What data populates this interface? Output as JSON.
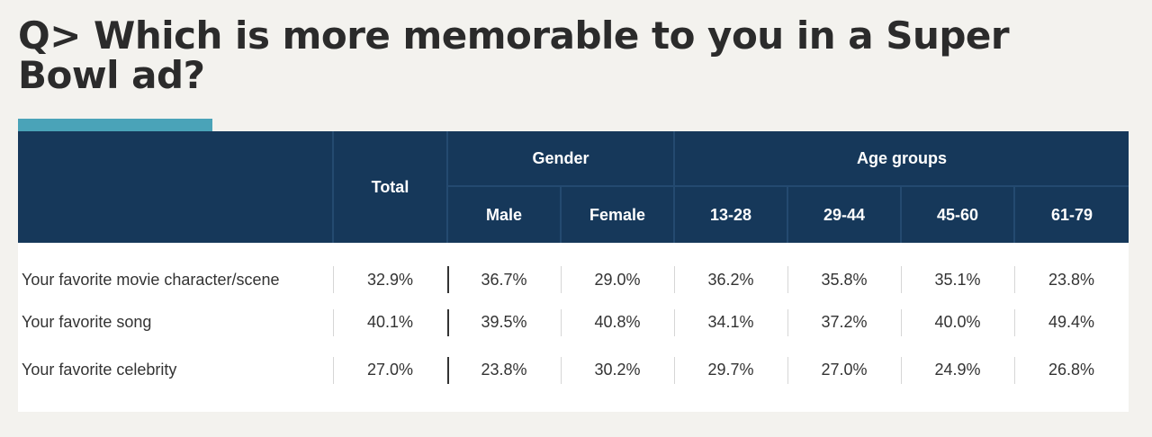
{
  "title": "Q> Which is more memorable to you in a Super Bowl ad?",
  "colors": {
    "header_bg": "#16385a",
    "accent": "#4aa3b8",
    "background": "#f3f2ee"
  },
  "chart_data": {
    "type": "table",
    "header": {
      "total": "Total",
      "groups": [
        {
          "label": "Gender",
          "columns": [
            "Male",
            "Female"
          ]
        },
        {
          "label": "Age groups",
          "columns": [
            "13-28",
            "29-44",
            "45-60",
            "61-79"
          ]
        }
      ]
    },
    "rows": [
      {
        "label": "Your favorite movie character/scene",
        "values": [
          "32.9%",
          "36.7%",
          "29.0%",
          "36.2%",
          "35.8%",
          "35.1%",
          "23.8%"
        ]
      },
      {
        "label": "Your favorite song",
        "values": [
          "40.1%",
          "39.5%",
          "40.8%",
          "34.1%",
          "37.2%",
          "40.0%",
          "49.4%"
        ]
      },
      {
        "label": "Your favorite celebrity",
        "values": [
          "27.0%",
          "23.8%",
          "30.2%",
          "29.7%",
          "27.0%",
          "24.9%",
          "26.8%"
        ]
      }
    ]
  }
}
